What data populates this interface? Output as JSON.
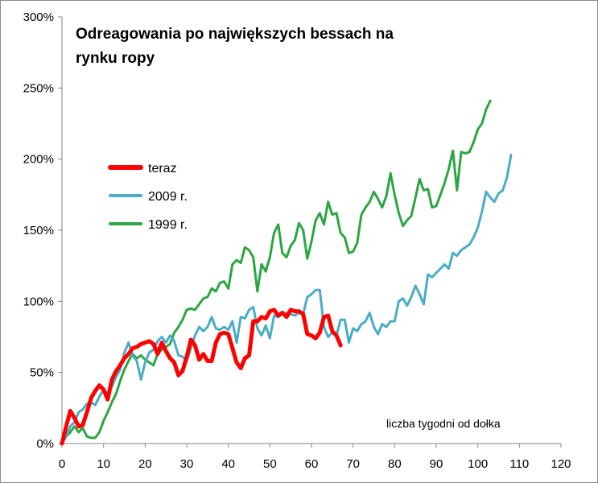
{
  "chart_data": {
    "type": "line",
    "title_lines": [
      "Odreagowania po największych bessach na",
      "rynku ropy"
    ],
    "annotation": "liczba tygodni od dołka",
    "xlabel": "",
    "ylabel": "",
    "xlim": [
      0,
      120
    ],
    "ylim": [
      0,
      3
    ],
    "x_ticks": [
      0,
      10,
      20,
      30,
      40,
      50,
      60,
      70,
      80,
      90,
      100,
      110,
      120
    ],
    "y_ticks": [
      {
        "value": 0,
        "label": "0%"
      },
      {
        "value": 0.5,
        "label": "50%"
      },
      {
        "value": 1,
        "label": "100%"
      },
      {
        "value": 1.5,
        "label": "150%"
      },
      {
        "value": 2,
        "label": "200%"
      },
      {
        "value": 2.5,
        "label": "250%"
      },
      {
        "value": 3,
        "label": "300%"
      }
    ],
    "grid": false,
    "legend_position": "left, upper-middle",
    "series": [
      {
        "name": "teraz",
        "color": "#ff0000",
        "stroke_width": 5,
        "values": [
          0,
          0.12,
          0.23,
          0.18,
          0.12,
          0.13,
          0.22,
          0.32,
          0.37,
          0.41,
          0.38,
          0.31,
          0.45,
          0.51,
          0.55,
          0.6,
          0.63,
          0.67,
          0.68,
          0.7,
          0.71,
          0.72,
          0.7,
          0.63,
          0.71,
          0.65,
          0.6,
          0.57,
          0.48,
          0.51,
          0.61,
          0.73,
          0.69,
          0.59,
          0.63,
          0.58,
          0.58,
          0.71,
          0.77,
          0.78,
          0.77,
          0.67,
          0.57,
          0.53,
          0.6,
          0.62,
          0.86,
          0.86,
          0.89,
          0.88,
          0.93,
          0.94,
          0.9,
          0.92,
          0.89,
          0.94,
          0.93,
          0.93,
          0.91,
          0.77,
          0.76,
          0.74,
          0.78,
          0.89,
          0.9,
          0.79,
          0.76,
          0.69
        ]
      },
      {
        "name": "2009 r.",
        "color": "#4bacc6",
        "stroke_width": 3,
        "values": [
          0,
          0.05,
          0.12,
          0.15,
          0.22,
          0.24,
          0.28,
          0.29,
          0.27,
          0.33,
          0.38,
          0.35,
          0.4,
          0.47,
          0.52,
          0.64,
          0.71,
          0.62,
          0.58,
          0.45,
          0.57,
          0.64,
          0.66,
          0.72,
          0.75,
          0.71,
          0.76,
          0.72,
          0.62,
          0.61,
          0.58,
          0.67,
          0.76,
          0.82,
          0.79,
          0.82,
          0.89,
          0.81,
          0.8,
          0.82,
          0.8,
          0.86,
          0.71,
          0.89,
          0.88,
          0.94,
          0.96,
          0.81,
          0.76,
          0.83,
          0.74,
          0.9,
          0.89,
          0.91,
          0.92,
          0.91,
          0.9,
          0.92,
          0.91,
          1.03,
          1.05,
          1.08,
          1.08,
          0.82,
          0.75,
          0.78,
          0.76,
          0.87,
          0.87,
          0.71,
          0.81,
          0.79,
          0.84,
          0.86,
          0.92,
          0.82,
          0.77,
          0.84,
          0.82,
          0.86,
          0.86,
          1.0,
          1.02,
          0.97,
          1.03,
          1.11,
          1.05,
          0.98,
          1.19,
          1.17,
          1.2,
          1.23,
          1.26,
          1.23,
          1.34,
          1.32,
          1.36,
          1.38,
          1.4,
          1.45,
          1.52,
          1.63,
          1.77,
          1.73,
          1.7,
          1.76,
          1.78,
          1.87,
          2.03
        ]
      },
      {
        "name": "1999 r.",
        "color": "#2ca642",
        "stroke_width": 3,
        "values": [
          0,
          0.05,
          0.08,
          0.12,
          0.08,
          0.11,
          0.05,
          0.04,
          0.04,
          0.08,
          0.16,
          0.22,
          0.29,
          0.35,
          0.44,
          0.52,
          0.58,
          0.63,
          0.6,
          0.62,
          0.59,
          0.57,
          0.55,
          0.63,
          0.66,
          0.68,
          0.7,
          0.78,
          0.82,
          0.87,
          0.94,
          0.95,
          0.94,
          0.98,
          1.02,
          1.03,
          1.09,
          1.07,
          1.13,
          1.14,
          1.09,
          1.26,
          1.29,
          1.27,
          1.38,
          1.36,
          1.31,
          1.07,
          1.26,
          1.21,
          1.31,
          1.48,
          1.54,
          1.34,
          1.31,
          1.39,
          1.43,
          1.55,
          1.5,
          1.3,
          1.42,
          1.57,
          1.62,
          1.54,
          1.7,
          1.61,
          1.62,
          1.48,
          1.45,
          1.34,
          1.35,
          1.41,
          1.61,
          1.66,
          1.7,
          1.77,
          1.72,
          1.66,
          1.74,
          1.9,
          1.75,
          1.62,
          1.53,
          1.57,
          1.6,
          1.73,
          1.86,
          1.78,
          1.79,
          1.66,
          1.67,
          1.75,
          1.83,
          1.93,
          2.06,
          1.78,
          2.05,
          2.04,
          2.05,
          2.12,
          2.21,
          2.25,
          2.35,
          2.41
        ]
      }
    ]
  }
}
